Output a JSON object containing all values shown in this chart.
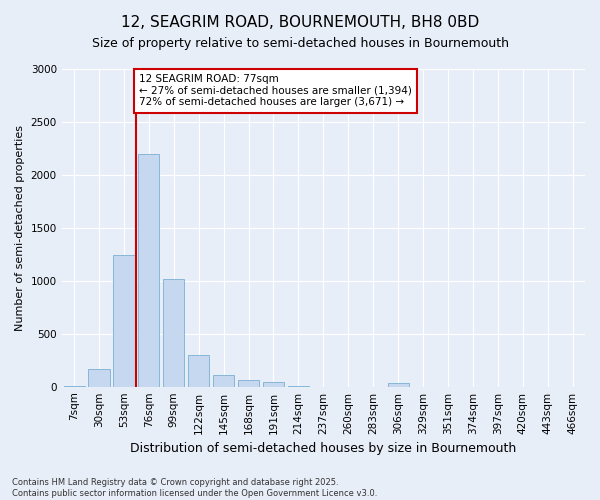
{
  "title": "12, SEAGRIM ROAD, BOURNEMOUTH, BH8 0BD",
  "subtitle": "Size of property relative to semi-detached houses in Bournemouth",
  "xlabel": "Distribution of semi-detached houses by size in Bournemouth",
  "ylabel": "Number of semi-detached properties",
  "footer_line1": "Contains HM Land Registry data © Crown copyright and database right 2025.",
  "footer_line2": "Contains public sector information licensed under the Open Government Licence v3.0.",
  "categories": [
    "7sqm",
    "30sqm",
    "53sqm",
    "76sqm",
    "99sqm",
    "122sqm",
    "145sqm",
    "168sqm",
    "191sqm",
    "214sqm",
    "237sqm",
    "260sqm",
    "283sqm",
    "306sqm",
    "329sqm",
    "351sqm",
    "374sqm",
    "397sqm",
    "420sqm",
    "443sqm",
    "466sqm"
  ],
  "values": [
    10,
    165,
    1240,
    2200,
    1020,
    295,
    110,
    60,
    45,
    5,
    0,
    0,
    0,
    35,
    0,
    0,
    0,
    0,
    0,
    0,
    0
  ],
  "bar_color": "#c5d8f0",
  "bar_edge_color": "#7aafd4",
  "vline_color": "#cc0000",
  "vline_x_index": 2.5,
  "annotation_text": "12 SEAGRIM ROAD: 77sqm\n← 27% of semi-detached houses are smaller (1,394)\n72% of semi-detached houses are larger (3,671) →",
  "annotation_box_facecolor": "#ffffff",
  "annotation_box_edgecolor": "#cc0000",
  "ylim": [
    0,
    3000
  ],
  "yticks": [
    0,
    500,
    1000,
    1500,
    2000,
    2500,
    3000
  ],
  "background_color": "#e8eef8",
  "title_fontsize": 11,
  "subtitle_fontsize": 9,
  "xlabel_fontsize": 9,
  "ylabel_fontsize": 8,
  "tick_fontsize": 7.5,
  "annotation_fontsize": 7.5,
  "footer_fontsize": 6
}
